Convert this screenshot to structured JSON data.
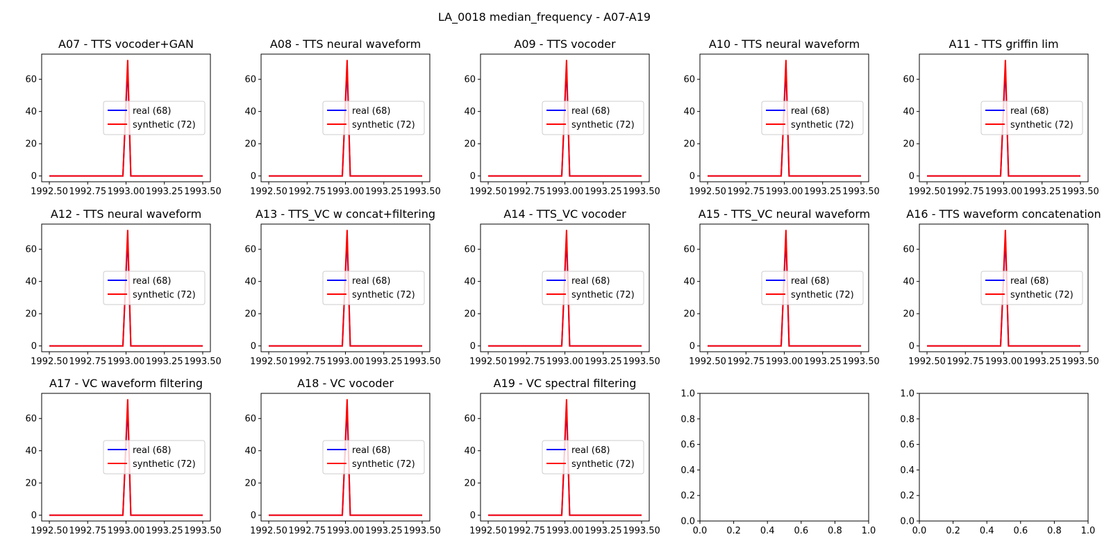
{
  "figure": {
    "title": "LA_0018 median_frequency - A07-A19"
  },
  "colors": {
    "real": "#0000ff",
    "synthetic": "#ff0000",
    "axis": "#000000"
  },
  "chart_data": [
    {
      "type": "line",
      "title": "A07 - TTS vocoder+GAN",
      "x": [
        1992.5,
        1993.0,
        1993.5
      ],
      "xlim": [
        1992.45,
        1993.55
      ],
      "ylim": [
        -3.6,
        75.6
      ],
      "xticks": [
        1992.5,
        1992.75,
        1993.0,
        1993.25,
        1993.5
      ],
      "xtick_labels": [
        "1992.50",
        "1992.75",
        "1993.00",
        "1993.25",
        "1993.50"
      ],
      "yticks": [
        0,
        20,
        40,
        60
      ],
      "ytick_labels": [
        "0",
        "20",
        "40",
        "60"
      ],
      "legend": "center-right",
      "series": [
        {
          "name": "real (68)",
          "peak": 68
        },
        {
          "name": "synthetic (72)",
          "peak": 72
        }
      ]
    },
    {
      "type": "line",
      "title": "A08 - TTS neural waveform",
      "x": [
        1992.5,
        1993.0,
        1993.5
      ],
      "xlim": [
        1992.45,
        1993.55
      ],
      "ylim": [
        -3.6,
        75.6
      ],
      "xticks": [
        1992.5,
        1992.75,
        1993.0,
        1993.25,
        1993.5
      ],
      "xtick_labels": [
        "1992.50",
        "1992.75",
        "1993.00",
        "1993.25",
        "1993.50"
      ],
      "yticks": [
        0,
        20,
        40,
        60
      ],
      "ytick_labels": [
        "0",
        "20",
        "40",
        "60"
      ],
      "legend": "center-right",
      "series": [
        {
          "name": "real (68)",
          "peak": 68
        },
        {
          "name": "synthetic (72)",
          "peak": 72
        }
      ]
    },
    {
      "type": "line",
      "title": "A09 - TTS vocoder",
      "x": [
        1992.5,
        1993.0,
        1993.5
      ],
      "xlim": [
        1992.45,
        1993.55
      ],
      "ylim": [
        -3.6,
        75.6
      ],
      "xticks": [
        1992.5,
        1992.75,
        1993.0,
        1993.25,
        1993.5
      ],
      "xtick_labels": [
        "1992.50",
        "1992.75",
        "1993.00",
        "1993.25",
        "1993.50"
      ],
      "yticks": [
        0,
        20,
        40,
        60
      ],
      "ytick_labels": [
        "0",
        "20",
        "40",
        "60"
      ],
      "legend": "center-right",
      "series": [
        {
          "name": "real (68)",
          "peak": 68
        },
        {
          "name": "synthetic (72)",
          "peak": 72
        }
      ]
    },
    {
      "type": "line",
      "title": "A10 - TTS neural waveform",
      "x": [
        1992.5,
        1993.0,
        1993.5
      ],
      "xlim": [
        1992.45,
        1993.55
      ],
      "ylim": [
        -3.6,
        75.6
      ],
      "xticks": [
        1992.5,
        1992.75,
        1993.0,
        1993.25,
        1993.5
      ],
      "xtick_labels": [
        "1992.50",
        "1992.75",
        "1993.00",
        "1993.25",
        "1993.50"
      ],
      "yticks": [
        0,
        20,
        40,
        60
      ],
      "ytick_labels": [
        "0",
        "20",
        "40",
        "60"
      ],
      "legend": "center-right",
      "series": [
        {
          "name": "real (68)",
          "peak": 68
        },
        {
          "name": "synthetic (72)",
          "peak": 72
        }
      ]
    },
    {
      "type": "line",
      "title": "A11 - TTS griffin lim",
      "x": [
        1992.5,
        1993.0,
        1993.5
      ],
      "xlim": [
        1992.45,
        1993.55
      ],
      "ylim": [
        -3.6,
        75.6
      ],
      "xticks": [
        1992.5,
        1992.75,
        1993.0,
        1993.25,
        1993.5
      ],
      "xtick_labels": [
        "1992.50",
        "1992.75",
        "1993.00",
        "1993.25",
        "1993.50"
      ],
      "yticks": [
        0,
        20,
        40,
        60
      ],
      "ytick_labels": [
        "0",
        "20",
        "40",
        "60"
      ],
      "legend": "center-right",
      "series": [
        {
          "name": "real (68)",
          "peak": 68
        },
        {
          "name": "synthetic (72)",
          "peak": 72
        }
      ]
    },
    {
      "type": "line",
      "title": "A12 - TTS neural waveform",
      "x": [
        1992.5,
        1993.0,
        1993.5
      ],
      "xlim": [
        1992.45,
        1993.55
      ],
      "ylim": [
        -3.6,
        75.6
      ],
      "xticks": [
        1992.5,
        1992.75,
        1993.0,
        1993.25,
        1993.5
      ],
      "xtick_labels": [
        "1992.50",
        "1992.75",
        "1993.00",
        "1993.25",
        "1993.50"
      ],
      "yticks": [
        0,
        20,
        40,
        60
      ],
      "ytick_labels": [
        "0",
        "20",
        "40",
        "60"
      ],
      "legend": "center-right",
      "series": [
        {
          "name": "real (68)",
          "peak": 68
        },
        {
          "name": "synthetic (72)",
          "peak": 72
        }
      ]
    },
    {
      "type": "line",
      "title": "A13 - TTS_VC w concat+filtering",
      "x": [
        1992.5,
        1993.0,
        1993.5
      ],
      "xlim": [
        1992.45,
        1993.55
      ],
      "ylim": [
        -3.6,
        75.6
      ],
      "xticks": [
        1992.5,
        1992.75,
        1993.0,
        1993.25,
        1993.5
      ],
      "xtick_labels": [
        "1992.50",
        "1992.75",
        "1993.00",
        "1993.25",
        "1993.50"
      ],
      "yticks": [
        0,
        20,
        40,
        60
      ],
      "ytick_labels": [
        "0",
        "20",
        "40",
        "60"
      ],
      "legend": "center-right",
      "series": [
        {
          "name": "real (68)",
          "peak": 68
        },
        {
          "name": "synthetic (72)",
          "peak": 72
        }
      ]
    },
    {
      "type": "line",
      "title": "A14 - TTS_VC vocoder",
      "x": [
        1992.5,
        1993.0,
        1993.5
      ],
      "xlim": [
        1992.45,
        1993.55
      ],
      "ylim": [
        -3.6,
        75.6
      ],
      "xticks": [
        1992.5,
        1992.75,
        1993.0,
        1993.25,
        1993.5
      ],
      "xtick_labels": [
        "1992.50",
        "1992.75",
        "1993.00",
        "1993.25",
        "1993.50"
      ],
      "yticks": [
        0,
        20,
        40,
        60
      ],
      "ytick_labels": [
        "0",
        "20",
        "40",
        "60"
      ],
      "legend": "center-right",
      "series": [
        {
          "name": "real (68)",
          "peak": 68
        },
        {
          "name": "synthetic (72)",
          "peak": 72
        }
      ]
    },
    {
      "type": "line",
      "title": "A15 - TTS_VC neural waveform",
      "x": [
        1992.5,
        1993.0,
        1993.5
      ],
      "xlim": [
        1992.45,
        1993.55
      ],
      "ylim": [
        -3.6,
        75.6
      ],
      "xticks": [
        1992.5,
        1992.75,
        1993.0,
        1993.25,
        1993.5
      ],
      "xtick_labels": [
        "1992.50",
        "1992.75",
        "1993.00",
        "1993.25",
        "1993.50"
      ],
      "yticks": [
        0,
        20,
        40,
        60
      ],
      "ytick_labels": [
        "0",
        "20",
        "40",
        "60"
      ],
      "legend": "center-right",
      "series": [
        {
          "name": "real (68)",
          "peak": 68
        },
        {
          "name": "synthetic (72)",
          "peak": 72
        }
      ]
    },
    {
      "type": "line",
      "title": "A16 - TTS waveform concatenation",
      "x": [
        1992.5,
        1993.0,
        1993.5
      ],
      "xlim": [
        1992.45,
        1993.55
      ],
      "ylim": [
        -3.6,
        75.6
      ],
      "xticks": [
        1992.5,
        1992.75,
        1993.0,
        1993.25,
        1993.5
      ],
      "xtick_labels": [
        "1992.50",
        "1992.75",
        "1993.00",
        "1993.25",
        "1993.50"
      ],
      "yticks": [
        0,
        20,
        40,
        60
      ],
      "ytick_labels": [
        "0",
        "20",
        "40",
        "60"
      ],
      "legend": "center-right",
      "series": [
        {
          "name": "real (68)",
          "peak": 68
        },
        {
          "name": "synthetic (72)",
          "peak": 72
        }
      ]
    },
    {
      "type": "line",
      "title": "A17 - VC waveform filtering",
      "x": [
        1992.5,
        1993.0,
        1993.5
      ],
      "xlim": [
        1992.45,
        1993.55
      ],
      "ylim": [
        -3.6,
        75.6
      ],
      "xticks": [
        1992.5,
        1992.75,
        1993.0,
        1993.25,
        1993.5
      ],
      "xtick_labels": [
        "1992.50",
        "1992.75",
        "1993.00",
        "1993.25",
        "1993.50"
      ],
      "yticks": [
        0,
        20,
        40,
        60
      ],
      "ytick_labels": [
        "0",
        "20",
        "40",
        "60"
      ],
      "legend": "center-right",
      "series": [
        {
          "name": "real (68)",
          "peak": 68
        },
        {
          "name": "synthetic (72)",
          "peak": 72
        }
      ]
    },
    {
      "type": "line",
      "title": "A18 - VC vocoder",
      "x": [
        1992.5,
        1993.0,
        1993.5
      ],
      "xlim": [
        1992.45,
        1993.55
      ],
      "ylim": [
        -3.6,
        75.6
      ],
      "xticks": [
        1992.5,
        1992.75,
        1993.0,
        1993.25,
        1993.5
      ],
      "xtick_labels": [
        "1992.50",
        "1992.75",
        "1993.00",
        "1993.25",
        "1993.50"
      ],
      "yticks": [
        0,
        20,
        40,
        60
      ],
      "ytick_labels": [
        "0",
        "20",
        "40",
        "60"
      ],
      "legend": "center-right",
      "series": [
        {
          "name": "real (68)",
          "peak": 68
        },
        {
          "name": "synthetic (72)",
          "peak": 72
        }
      ]
    },
    {
      "type": "line",
      "title": "A19 - VC spectral filtering",
      "x": [
        1992.5,
        1993.0,
        1993.5
      ],
      "xlim": [
        1992.45,
        1993.55
      ],
      "ylim": [
        -3.6,
        75.6
      ],
      "xticks": [
        1992.5,
        1992.75,
        1993.0,
        1993.25,
        1993.5
      ],
      "xtick_labels": [
        "1992.50",
        "1992.75",
        "1993.00",
        "1993.25",
        "1993.50"
      ],
      "yticks": [
        0,
        20,
        40,
        60
      ],
      "ytick_labels": [
        "0",
        "20",
        "40",
        "60"
      ],
      "legend": "center-right",
      "series": [
        {
          "name": "real (68)",
          "peak": 68
        },
        {
          "name": "synthetic (72)",
          "peak": 72
        }
      ]
    },
    {
      "type": "line",
      "title": "",
      "empty": true,
      "xlim": [
        0,
        1
      ],
      "ylim": [
        0,
        1
      ],
      "xticks": [
        0,
        0.2,
        0.4,
        0.6,
        0.8,
        1
      ],
      "xtick_labels": [
        "0.0",
        "0.2",
        "0.4",
        "0.6",
        "0.8",
        "1.0"
      ],
      "yticks": [
        0,
        0.2,
        0.4,
        0.6,
        0.8,
        1
      ],
      "ytick_labels": [
        "0.0",
        "0.2",
        "0.4",
        "0.6",
        "0.8",
        "1.0"
      ],
      "series": []
    },
    {
      "type": "line",
      "title": "",
      "empty": true,
      "xlim": [
        0,
        1
      ],
      "ylim": [
        0,
        1
      ],
      "xticks": [
        0,
        0.2,
        0.4,
        0.6,
        0.8,
        1
      ],
      "xtick_labels": [
        "0.0",
        "0.2",
        "0.4",
        "0.6",
        "0.8",
        "1.0"
      ],
      "yticks": [
        0,
        0.2,
        0.4,
        0.6,
        0.8,
        1
      ],
      "ytick_labels": [
        "0.0",
        "0.2",
        "0.4",
        "0.6",
        "0.8",
        "1.0"
      ],
      "series": []
    }
  ]
}
